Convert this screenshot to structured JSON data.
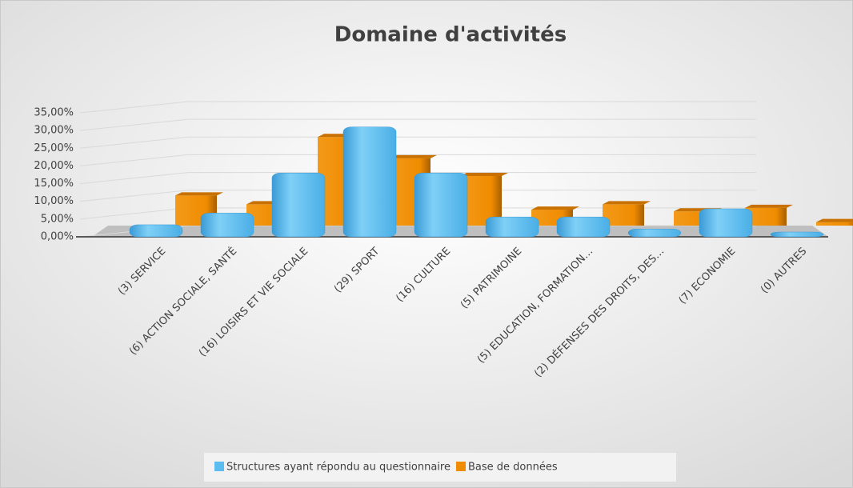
{
  "chart_data": {
    "type": "bar3d",
    "title": "Domaine d'activités",
    "categories": [
      "(3) SERVICE",
      "(6) ACTION SOCIALE, SANTÉ",
      "(16) LOISIRS ET VIE SOCIALE",
      "(29) SPORT",
      "(16) CULTURE",
      "(5) PATRIMOINE",
      "(5) EDUCATION, FORMATION…",
      "(2) DÉFENSES DES DROITS, DES…",
      "(7) ECONOMIE",
      "(0) AUTRES"
    ],
    "series": [
      {
        "name": "Structures ayant répondu au questionnaire",
        "color": "#5bbcef",
        "values": [
          3.4,
          6.7,
          18,
          31,
          18,
          5.6,
          5.6,
          2.2,
          7.9,
          0
        ]
      },
      {
        "name": "Base de données",
        "color": "#f08c00",
        "values": [
          8.5,
          6,
          25,
          19,
          14,
          4.5,
          6,
          4,
          5,
          1
        ]
      }
    ],
    "ylim": [
      0,
      35
    ],
    "yticks": [
      {
        "value": 0,
        "label": "0,00%"
      },
      {
        "value": 5,
        "label": "5,00%"
      },
      {
        "value": 10,
        "label": "10,00%"
      },
      {
        "value": 15,
        "label": "15,00%"
      },
      {
        "value": 20,
        "label": "20,00%"
      },
      {
        "value": 25,
        "label": "25,00%"
      },
      {
        "value": 30,
        "label": "30,00%"
      },
      {
        "value": 35,
        "label": "35,00%"
      }
    ],
    "grid": true,
    "legend": "bottom"
  }
}
